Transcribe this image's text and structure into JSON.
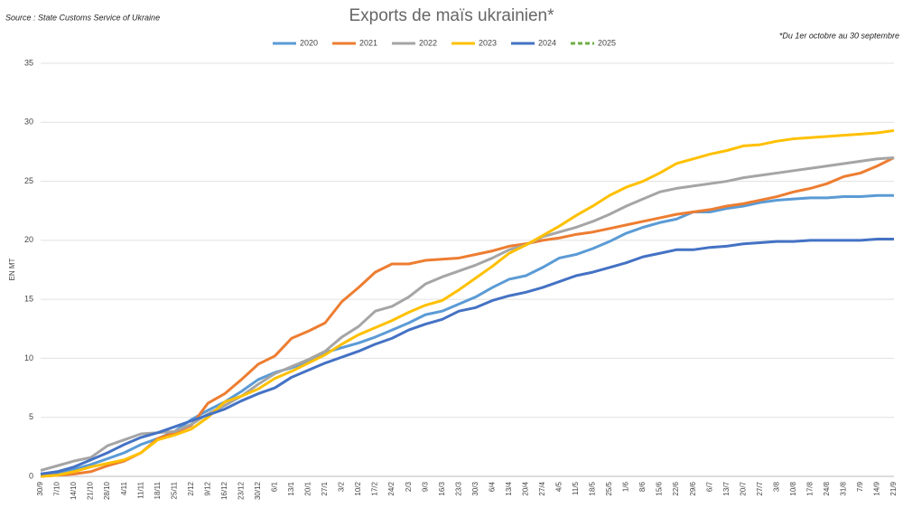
{
  "chart_data": {
    "type": "line",
    "title": "Exports de maïs ukrainien*",
    "source": "Source : State Customs Service of Ukraine",
    "note": "*Du 1er octobre au 30 septembre",
    "ylabel": "EN MT",
    "categories": [
      "30/9",
      "7/10",
      "14/10",
      "21/10",
      "28/10",
      "4/11",
      "11/11",
      "18/11",
      "25/11",
      "2/12",
      "9/12",
      "16/12",
      "23/12",
      "30/12",
      "6/1",
      "13/1",
      "20/1",
      "27/1",
      "3/2",
      "10/2",
      "17/2",
      "24/2",
      "2/3",
      "9/3",
      "16/3",
      "23/3",
      "30/3",
      "6/4",
      "13/4",
      "20/4",
      "27/4",
      "4/5",
      "11/5",
      "18/5",
      "25/5",
      "1/6",
      "8/6",
      "15/6",
      "22/6",
      "29/6",
      "6/7",
      "13/7",
      "20/7",
      "27/7",
      "3/8",
      "10/8",
      "17/8",
      "24/8",
      "31/8",
      "7/9",
      "14/9",
      "21/9"
    ],
    "series": [
      {
        "name": "2020",
        "color": "#5b9bd5",
        "values": [
          0.2,
          0.3,
          0.6,
          1.0,
          1.5,
          2.0,
          2.7,
          3.2,
          3.8,
          4.8,
          5.6,
          6.3,
          7.2,
          8.2,
          8.8,
          9.2,
          9.7,
          10.5,
          10.9,
          11.3,
          11.8,
          12.4,
          13.0,
          13.7,
          14.0,
          14.6,
          15.2,
          16.0,
          16.7,
          17.0,
          17.7,
          18.5,
          18.8,
          19.3,
          19.9,
          20.6,
          21.1,
          21.5,
          21.8,
          22.4,
          22.4,
          22.7,
          22.9,
          23.2,
          23.4,
          23.5,
          23.6,
          23.6,
          23.7,
          23.7,
          23.8,
          23.8
        ]
      },
      {
        "name": "2021",
        "color": "#ed7d31",
        "values": [
          0,
          0.1,
          0.2,
          0.4,
          0.9,
          1.3,
          2.0,
          3.2,
          3.7,
          4.3,
          6.2,
          7.0,
          8.2,
          9.5,
          10.2,
          11.7,
          12.3,
          13.0,
          14.8,
          16.0,
          17.3,
          18.0,
          18.0,
          18.3,
          18.4,
          18.5,
          18.8,
          19.1,
          19.5,
          19.7,
          20.0,
          20.2,
          20.5,
          20.7,
          21.0,
          21.3,
          21.6,
          21.9,
          22.2,
          22.4,
          22.6,
          22.9,
          23.1,
          23.4,
          23.7,
          24.1,
          24.4,
          24.8,
          25.4,
          25.7,
          26.3,
          27.0
        ]
      },
      {
        "name": "2022",
        "color": "#a5a5a5",
        "values": [
          0.5,
          0.9,
          1.3,
          1.6,
          2.6,
          3.1,
          3.6,
          3.7,
          3.8,
          4.4,
          5.3,
          6.0,
          6.8,
          7.8,
          8.7,
          9.3,
          9.9,
          10.6,
          11.8,
          12.7,
          14.0,
          14.4,
          15.2,
          16.3,
          16.9,
          17.4,
          17.9,
          18.5,
          19.2,
          19.6,
          20.3,
          20.7,
          21.1,
          21.6,
          22.2,
          22.9,
          23.5,
          24.1,
          24.4,
          24.6,
          24.8,
          25.0,
          25.3,
          25.5,
          25.7,
          25.9,
          26.1,
          26.3,
          26.5,
          26.7,
          26.9,
          27.0
        ]
      },
      {
        "name": "2023",
        "color": "#ffc000",
        "values": [
          0,
          0.1,
          0.4,
          0.8,
          1.1,
          1.4,
          2.0,
          3.1,
          3.5,
          4.0,
          5.0,
          6.3,
          6.8,
          7.4,
          8.3,
          8.9,
          9.6,
          10.3,
          11.2,
          12.0,
          12.6,
          13.2,
          13.9,
          14.5,
          14.9,
          15.8,
          16.8,
          17.8,
          18.9,
          19.6,
          20.4,
          21.2,
          22.1,
          22.9,
          23.8,
          24.5,
          25.0,
          25.7,
          26.5,
          26.9,
          27.3,
          27.6,
          28.0,
          28.1,
          28.4,
          28.6,
          28.7,
          28.8,
          28.9,
          29.0,
          29.1,
          29.3
        ]
      },
      {
        "name": "2024",
        "color": "#4472c4",
        "values": [
          0.2,
          0.4,
          0.8,
          1.4,
          2.0,
          2.7,
          3.3,
          3.7,
          4.2,
          4.7,
          5.2,
          5.7,
          6.4,
          7.0,
          7.5,
          8.4,
          9.0,
          9.6,
          10.1,
          10.6,
          11.2,
          11.7,
          12.4,
          12.9,
          13.3,
          14.0,
          14.3,
          14.9,
          15.3,
          15.6,
          16.0,
          16.5,
          17.0,
          17.3,
          17.7,
          18.1,
          18.6,
          18.9,
          19.2,
          19.2,
          19.4,
          19.5,
          19.7,
          19.8,
          19.9,
          19.9,
          20.0,
          20.0,
          20.0,
          20.0,
          20.1,
          20.1
        ]
      },
      {
        "name": "2025",
        "color": "#70ad47",
        "dashed": true,
        "values": [
          null,
          null,
          null,
          null,
          null,
          null,
          null,
          null,
          null,
          null,
          null,
          null,
          null,
          null,
          null,
          null,
          null,
          null,
          null,
          null,
          null,
          null,
          null,
          null,
          null,
          null,
          null,
          null,
          null,
          null,
          null,
          null,
          null,
          null,
          null,
          null,
          null,
          null,
          null,
          null,
          null,
          null,
          null,
          null,
          null,
          null,
          null,
          null,
          null,
          null,
          null,
          null
        ]
      }
    ],
    "ylim": [
      0,
      35
    ],
    "yticks": [
      0,
      5,
      10,
      15,
      20,
      25,
      30,
      35
    ],
    "grid": true,
    "legend": "top"
  }
}
